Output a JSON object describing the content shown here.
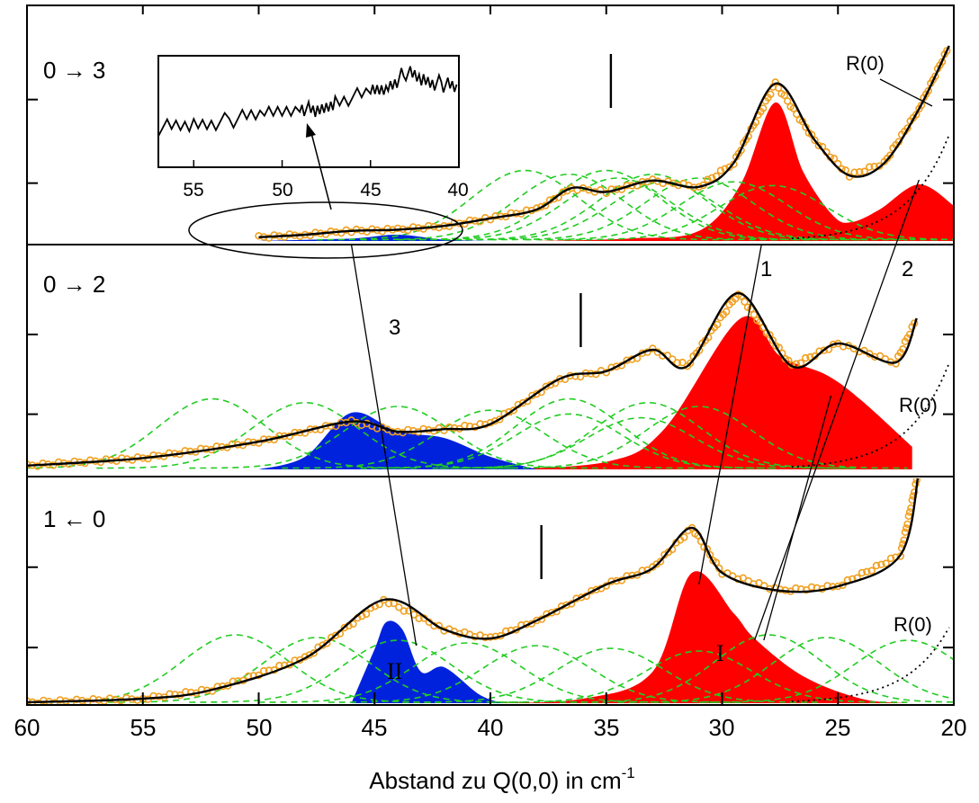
{
  "chart_data": {
    "type": "line",
    "xlabel": "Abstand zu Q(0,0) in cm",
    "xlabel_superscript": "-1",
    "xlim": [
      60,
      20
    ],
    "x_ticks": [
      "60",
      "55",
      "50",
      "45",
      "40",
      "35",
      "30",
      "25",
      "20"
    ],
    "panels": [
      {
        "label": "0 → 3",
        "r0_label": "R(0)",
        "origin_marker_x": 34.8,
        "band_labels": [],
        "measured": [
          [
            50,
            0.03
          ],
          [
            48,
            0.05
          ],
          [
            46,
            0.08
          ],
          [
            44,
            0.09
          ],
          [
            42,
            0.12
          ],
          [
            40,
            0.18
          ],
          [
            38,
            0.25
          ],
          [
            36.5,
            0.42
          ],
          [
            35,
            0.39
          ],
          [
            33,
            0.48
          ],
          [
            31,
            0.43
          ],
          [
            29.5,
            0.62
          ],
          [
            27.7,
            1.25
          ],
          [
            26,
            0.8
          ],
          [
            24.5,
            0.52
          ],
          [
            23,
            0.62
          ],
          [
            21.5,
            1.05
          ],
          [
            20.2,
            1.55
          ]
        ],
        "fit": [
          [
            50,
            0.03
          ],
          [
            48,
            0.05
          ],
          [
            46,
            0.08
          ],
          [
            44,
            0.09
          ],
          [
            42,
            0.12
          ],
          [
            40,
            0.18
          ],
          [
            38,
            0.25
          ],
          [
            36.5,
            0.42
          ],
          [
            35,
            0.39
          ],
          [
            33,
            0.48
          ],
          [
            31,
            0.43
          ],
          [
            29.5,
            0.62
          ],
          [
            27.7,
            1.25
          ],
          [
            26,
            0.8
          ],
          [
            24.5,
            0.52
          ],
          [
            23,
            0.62
          ],
          [
            21.5,
            1.05
          ],
          [
            20.2,
            1.55
          ]
        ],
        "gauss": [
          [
            38.5,
            36.6,
            34.5,
            32.5
          ],
          [
            35,
            33,
            31,
            29.5,
            27.8
          ]
        ],
        "red_fill": [
          [
            38,
            0
          ],
          [
            34,
            0.02
          ],
          [
            31,
            0.08
          ],
          [
            29.2,
            0.45
          ],
          [
            27.7,
            1.1
          ],
          [
            26.5,
            0.55
          ],
          [
            25.2,
            0.2
          ],
          [
            24.4,
            0.15
          ],
          [
            23.2,
            0.25
          ],
          [
            21.5,
            0.45
          ],
          [
            20,
            0.28
          ]
        ],
        "blue_fill": [
          [
            50,
            0
          ],
          [
            46,
            0.02
          ],
          [
            44,
            0.05
          ],
          [
            42,
            0.01
          ],
          [
            40,
            0
          ]
        ]
      },
      {
        "label": "0 → 2",
        "r0_label": "R(0)",
        "origin_marker_x": 36.1,
        "band_labels": [
          "3",
          "1",
          "2"
        ],
        "measured": [
          [
            60,
            0.03
          ],
          [
            55,
            0.09
          ],
          [
            50,
            0.22
          ],
          [
            46,
            0.38
          ],
          [
            44,
            0.3
          ],
          [
            42,
            0.32
          ],
          [
            40,
            0.36
          ],
          [
            37,
            0.72
          ],
          [
            35,
            0.78
          ],
          [
            33,
            0.95
          ],
          [
            31.5,
            0.82
          ],
          [
            29.3,
            1.4
          ],
          [
            27,
            0.82
          ],
          [
            25,
            1.0
          ],
          [
            22.5,
            0.85
          ],
          [
            21.6,
            1.2
          ]
        ],
        "fit": [
          [
            60,
            0.03
          ],
          [
            55,
            0.09
          ],
          [
            50,
            0.22
          ],
          [
            46,
            0.38
          ],
          [
            44,
            0.3
          ],
          [
            42,
            0.32
          ],
          [
            40,
            0.36
          ],
          [
            37,
            0.72
          ],
          [
            35,
            0.78
          ],
          [
            33,
            0.95
          ],
          [
            31.5,
            0.82
          ],
          [
            29.3,
            1.4
          ],
          [
            27,
            0.82
          ],
          [
            25,
            1.0
          ],
          [
            22.5,
            0.85
          ],
          [
            21.6,
            1.2
          ]
        ],
        "gauss": [
          [
            52,
            48,
            44,
            40,
            36.6,
            33.5
          ],
          [
            36.6,
            33.2,
            31
          ]
        ],
        "red_fill": [
          [
            40,
            0
          ],
          [
            35,
            0.06
          ],
          [
            32.5,
            0.32
          ],
          [
            29.2,
            1.2
          ],
          [
            27.5,
            0.9
          ],
          [
            25.5,
            0.75
          ],
          [
            24,
            0.55
          ],
          [
            21.8,
            0.18
          ]
        ],
        "blue_fill": [
          [
            50,
            0
          ],
          [
            48,
            0.1
          ],
          [
            46,
            0.45
          ],
          [
            44,
            0.3
          ],
          [
            42,
            0.25
          ],
          [
            40,
            0.1
          ],
          [
            38,
            0
          ]
        ]
      },
      {
        "label": "1 ← 0",
        "r0_label": "R(0)",
        "origin_marker_x": 37.8,
        "band_labels": [
          "II",
          "I"
        ],
        "measured": [
          [
            60,
            0.01
          ],
          [
            55,
            0.05
          ],
          [
            52,
            0.15
          ],
          [
            48,
            0.5
          ],
          [
            44.6,
            1.15
          ],
          [
            42,
            0.82
          ],
          [
            40,
            0.72
          ],
          [
            38,
            0.92
          ],
          [
            35,
            1.32
          ],
          [
            33,
            1.5
          ],
          [
            31.3,
            1.95
          ],
          [
            30,
            1.45
          ],
          [
            27.5,
            1.25
          ],
          [
            25,
            1.3
          ],
          [
            22.3,
            1.65
          ],
          [
            21.5,
            2.6
          ]
        ],
        "fit": [
          [
            60,
            0.01
          ],
          [
            55,
            0.05
          ],
          [
            52,
            0.15
          ],
          [
            48,
            0.5
          ],
          [
            44.6,
            1.15
          ],
          [
            42,
            0.82
          ],
          [
            40,
            0.72
          ],
          [
            38,
            0.92
          ],
          [
            35,
            1.32
          ],
          [
            33,
            1.5
          ],
          [
            31.3,
            1.95
          ],
          [
            30,
            1.45
          ],
          [
            27.5,
            1.25
          ],
          [
            25,
            1.3
          ],
          [
            22.3,
            1.65
          ],
          [
            21.5,
            2.6
          ]
        ],
        "gauss": [
          [
            51,
            47.5,
            44,
            41,
            38,
            34.8,
            31
          ],
          [
            28,
            25.5,
            22
          ]
        ],
        "red_fill": [
          [
            40,
            0
          ],
          [
            36,
            0.05
          ],
          [
            33,
            0.35
          ],
          [
            31.3,
            1.45
          ],
          [
            29.5,
            1.0
          ],
          [
            28.6,
            0.72
          ],
          [
            26.5,
            0.3
          ],
          [
            24,
            0.05
          ],
          [
            22,
            0
          ]
        ],
        "blue_fill": [
          [
            46,
            0
          ],
          [
            45,
            0.6
          ],
          [
            44.5,
            0.9
          ],
          [
            43.8,
            0.82
          ],
          [
            43,
            0.35
          ],
          [
            42,
            0.4
          ],
          [
            40.5,
            0.1
          ],
          [
            39.5,
            0
          ]
        ]
      }
    ],
    "inset": {
      "xlim": [
        57,
        40
      ],
      "x_ticks": [
        "55",
        "50",
        "45",
        "40"
      ],
      "series": [
        [
          57,
          0.35
        ],
        [
          55,
          0.38
        ],
        [
          53,
          0.42
        ],
        [
          51,
          0.48
        ],
        [
          49,
          0.55
        ],
        [
          48,
          0.48
        ],
        [
          47,
          0.6
        ],
        [
          45,
          0.66
        ],
        [
          44,
          0.72
        ],
        [
          43,
          0.85
        ],
        [
          42,
          0.78
        ],
        [
          41,
          0.75
        ],
        [
          40,
          0.7
        ]
      ]
    },
    "colors": {
      "measured": "#f0a020",
      "fit": "#000000",
      "gauss": "#22cc22",
      "red_fill": "#ff0000",
      "blue_fill": "#0022dd"
    }
  }
}
